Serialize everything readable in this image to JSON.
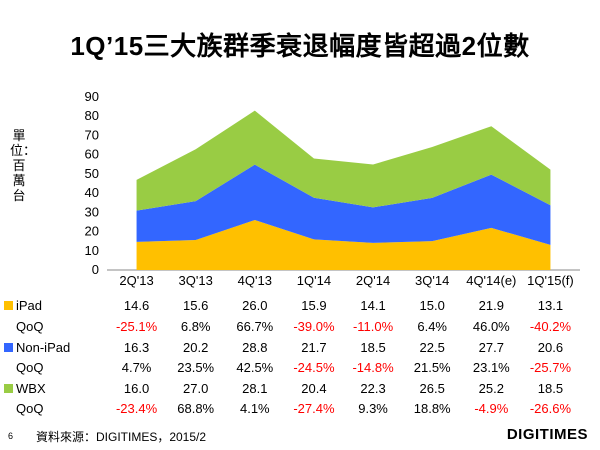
{
  "title": "1Q’15三大族群季衰退幅度皆超過2位數",
  "ylabel": "單位：百萬台",
  "source": "資料來源：DIGITIMES，2015/2",
  "page_number": "6",
  "logo": "DIGITIMES",
  "chart_data": {
    "type": "area",
    "stacked": true,
    "title": "1Q’15三大族群季衰退幅度皆超過2位數",
    "ylabel": "單位：百萬台",
    "ylim": [
      0,
      90
    ],
    "yticks": [
      "0",
      "10",
      "20",
      "30",
      "40",
      "50",
      "60",
      "70",
      "80",
      "90"
    ],
    "categories": [
      "2Q'13",
      "3Q'13",
      "4Q'13",
      "1Q'14",
      "2Q'14",
      "3Q'14",
      "4Q'14(e)",
      "1Q'15(f)"
    ],
    "series": [
      {
        "name": "iPad",
        "color": "#ffc000",
        "values": [
          14.6,
          15.6,
          26.0,
          15.9,
          14.1,
          15.0,
          21.9,
          13.1
        ],
        "values_text": [
          "14.6",
          "15.6",
          "26.0",
          "15.9",
          "14.1",
          "15.0",
          "21.9",
          "13.1"
        ],
        "qoq_label": "QoQ",
        "qoq": [
          "-25.1%",
          "6.8%",
          "66.7%",
          "-39.0%",
          "-11.0%",
          "6.4%",
          "46.0%",
          "-40.2%"
        ]
      },
      {
        "name": "Non-iPad",
        "color": "#3366ff",
        "values": [
          16.3,
          20.2,
          28.8,
          21.7,
          18.5,
          22.5,
          27.7,
          20.6
        ],
        "values_text": [
          "16.3",
          "20.2",
          "28.8",
          "21.7",
          "18.5",
          "22.5",
          "27.7",
          "20.6"
        ],
        "qoq_label": "QoQ",
        "qoq": [
          "4.7%",
          "23.5%",
          "42.5%",
          "-24.5%",
          "-14.8%",
          "21.5%",
          "23.1%",
          "-25.7%"
        ]
      },
      {
        "name": "WBX",
        "color": "#99cc44",
        "values": [
          16.0,
          27.0,
          28.1,
          20.4,
          22.3,
          26.5,
          25.2,
          18.5
        ],
        "values_text": [
          "16.0",
          "27.0",
          "28.1",
          "20.4",
          "22.3",
          "26.5",
          "25.2",
          "18.5"
        ],
        "qoq_label": "QoQ",
        "qoq": [
          "-23.4%",
          "68.8%",
          "4.1%",
          "-27.4%",
          "9.3%",
          "18.8%",
          "-4.9%",
          "-26.6%"
        ]
      }
    ]
  }
}
